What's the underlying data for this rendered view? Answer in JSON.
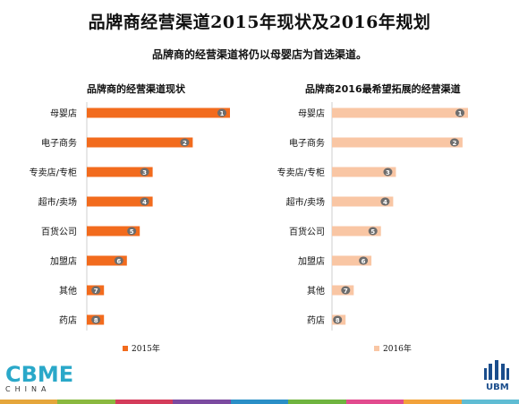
{
  "header": {
    "title": "品牌商经营渠道2015年现状及2016年规划",
    "subtitle": "品牌商的经营渠道将仍以母婴店为首选渠道。"
  },
  "chart_data": [
    {
      "type": "bar",
      "orientation": "horizontal",
      "title": "品牌商的经营渠道现状",
      "categories": [
        "母婴店",
        "电子商务",
        "专卖店/专柜",
        "超市/卖场",
        "百货公司",
        "加盟店",
        "其他",
        "药店"
      ],
      "rank_labels": [
        "1",
        "2",
        "3",
        "4",
        "5",
        "6",
        "7",
        "8"
      ],
      "series": [
        {
          "name": "2015年",
          "values": [
            100,
            74,
            46,
            46,
            37,
            28,
            12,
            12
          ],
          "color": "#f26b1d"
        }
      ],
      "xlim": [
        0,
        100
      ],
      "value_unit": "relative",
      "grid": false,
      "legend": "bottom"
    },
    {
      "type": "bar",
      "orientation": "horizontal",
      "title": "品牌商2016最希望拓展的经营渠道",
      "categories": [
        "母婴店",
        "电子商务",
        "专卖店/专柜",
        "超市/卖场",
        "百货公司",
        "加盟店",
        "其他",
        "药店"
      ],
      "rank_labels": [
        "1",
        "2",
        "3",
        "4",
        "5",
        "6",
        "7",
        "8"
      ],
      "series": [
        {
          "name": "2016年",
          "values": [
            100,
            96,
            47,
            45,
            36,
            29,
            16,
            10
          ],
          "color": "#f9c6a4"
        }
      ],
      "xlim": [
        0,
        100
      ],
      "value_unit": "relative",
      "grid": false,
      "legend": "bottom"
    }
  ],
  "logos": {
    "cbme_text": "CBME",
    "cbme_sub": "CHINA",
    "ubm_text": "UBM"
  },
  "colors": {
    "footer": [
      "#e5a63b",
      "#8ab83f",
      "#d43c5a",
      "#7b4aa0",
      "#2a8fc7",
      "#6fb43f",
      "#e24b8e",
      "#f2a23a",
      "#5fbcd3"
    ],
    "badge": "#6d6d6d"
  }
}
